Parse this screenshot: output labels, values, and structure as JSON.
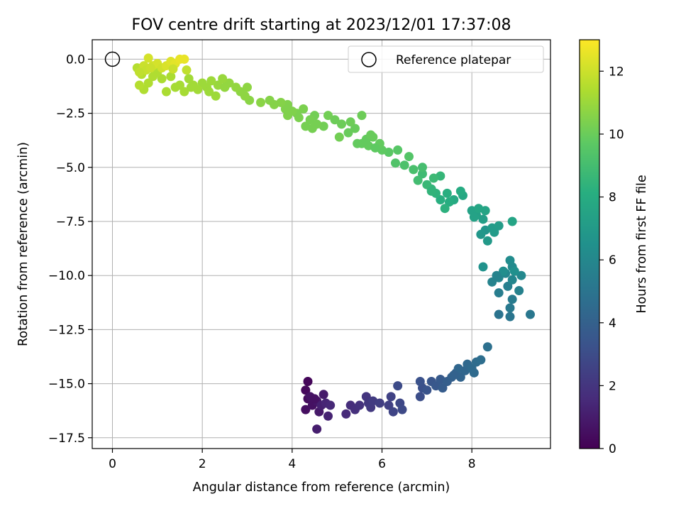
{
  "chart_data": {
    "type": "scatter",
    "title": "FOV centre drift starting at 2023/12/01 17:37:08",
    "xlabel": "Angular distance from reference (arcmin)",
    "ylabel": "Rotation from reference (arcmin)",
    "xlim": [
      -0.45,
      9.75
    ],
    "ylim": [
      -18.0,
      0.9
    ],
    "x_ticks": [
      0,
      2,
      4,
      6,
      8
    ],
    "y_ticks": [
      0.0,
      -2.5,
      -5.0,
      -7.5,
      -10.0,
      -12.5,
      -15.0,
      -17.5
    ],
    "grid": true,
    "legend": {
      "placement": "top-right",
      "entries": [
        "Reference platepar"
      ]
    },
    "reference_point": {
      "label": "Reference platepar",
      "x": 0,
      "y": 0
    },
    "colorbar": {
      "label": "Hours from first FF file",
      "colormap": "viridis",
      "range": [
        0,
        13
      ],
      "ticks": [
        0,
        2,
        4,
        6,
        8,
        10,
        12
      ]
    },
    "series": [
      {
        "points": [
          [
            4.35,
            -14.9,
            0.2
          ],
          [
            4.3,
            -15.3,
            0.3
          ],
          [
            4.35,
            -15.7,
            0.4
          ],
          [
            4.3,
            -16.2,
            0.5
          ],
          [
            4.45,
            -16.0,
            0.6
          ],
          [
            4.4,
            -15.6,
            0.7
          ],
          [
            4.55,
            -15.8,
            0.8
          ],
          [
            4.6,
            -16.3,
            0.9
          ],
          [
            4.7,
            -15.5,
            1.0
          ],
          [
            4.55,
            -17.1,
            1.1
          ],
          [
            4.65,
            -16.0,
            1.2
          ],
          [
            4.8,
            -16.5,
            1.3
          ],
          [
            4.75,
            -15.9,
            1.4
          ],
          [
            4.85,
            -16.0,
            1.5
          ],
          [
            4.5,
            -15.7,
            0.6
          ],
          [
            5.2,
            -16.4,
            1.6
          ],
          [
            5.3,
            -16.0,
            1.7
          ],
          [
            5.4,
            -16.2,
            1.8
          ],
          [
            5.5,
            -16.0,
            1.9
          ],
          [
            5.65,
            -15.6,
            2.0
          ],
          [
            5.7,
            -15.9,
            2.1
          ],
          [
            5.75,
            -16.1,
            2.2
          ],
          [
            5.8,
            -15.8,
            2.3
          ],
          [
            5.95,
            -15.9,
            2.4
          ],
          [
            6.15,
            -16.0,
            2.5
          ],
          [
            6.2,
            -15.6,
            2.6
          ],
          [
            6.25,
            -16.3,
            2.7
          ],
          [
            6.4,
            -15.9,
            2.8
          ],
          [
            6.45,
            -16.2,
            2.9
          ],
          [
            6.35,
            -15.1,
            3.0
          ],
          [
            6.85,
            -15.6,
            3.1
          ],
          [
            6.9,
            -15.2,
            3.2
          ],
          [
            6.85,
            -14.9,
            3.3
          ],
          [
            7.0,
            -15.3,
            3.4
          ],
          [
            7.1,
            -14.9,
            3.5
          ],
          [
            7.2,
            -15.1,
            3.6
          ],
          [
            7.3,
            -14.8,
            3.7
          ],
          [
            7.35,
            -15.2,
            3.8
          ],
          [
            7.45,
            -14.9,
            3.9
          ],
          [
            7.55,
            -14.7,
            4.0
          ],
          [
            7.65,
            -14.5,
            4.1
          ],
          [
            7.75,
            -14.7,
            4.2
          ],
          [
            7.85,
            -14.4,
            4.3
          ],
          [
            7.9,
            -14.1,
            4.4
          ],
          [
            8.0,
            -14.3,
            4.5
          ],
          [
            8.1,
            -14.0,
            4.6
          ],
          [
            8.2,
            -13.9,
            4.7
          ],
          [
            8.35,
            -13.3,
            4.8
          ],
          [
            7.7,
            -14.3,
            4.3
          ],
          [
            7.6,
            -14.6,
            4.1
          ],
          [
            8.05,
            -14.5,
            4.5
          ],
          [
            8.6,
            -11.8,
            5.0
          ],
          [
            8.85,
            -11.9,
            5.1
          ],
          [
            9.3,
            -11.8,
            5.2
          ],
          [
            8.85,
            -11.5,
            5.3
          ],
          [
            8.9,
            -11.1,
            5.4
          ],
          [
            8.6,
            -10.8,
            5.5
          ],
          [
            8.8,
            -10.5,
            5.6
          ],
          [
            9.05,
            -10.7,
            5.7
          ],
          [
            8.45,
            -10.3,
            5.8
          ],
          [
            8.6,
            -10.1,
            5.9
          ],
          [
            8.75,
            -9.9,
            6.0
          ],
          [
            9.1,
            -10.0,
            6.1
          ],
          [
            8.9,
            -9.6,
            6.2
          ],
          [
            8.85,
            -9.3,
            6.3
          ],
          [
            8.7,
            -9.8,
            6.4
          ],
          [
            8.95,
            -9.8,
            6.5
          ],
          [
            8.25,
            -9.6,
            6.6
          ],
          [
            8.55,
            -10.0,
            5.8
          ],
          [
            8.9,
            -10.2,
            6.0
          ],
          [
            8.3,
            -7.9,
            6.8
          ],
          [
            8.2,
            -8.1,
            6.9
          ],
          [
            8.35,
            -8.4,
            7.0
          ],
          [
            8.45,
            -7.8,
            7.1
          ],
          [
            8.6,
            -7.7,
            7.2
          ],
          [
            8.25,
            -7.4,
            7.3
          ],
          [
            8.1,
            -7.2,
            7.4
          ],
          [
            8.0,
            -7.0,
            7.5
          ],
          [
            8.3,
            -7.0,
            7.6
          ],
          [
            8.15,
            -6.9,
            7.7
          ],
          [
            8.9,
            -7.5,
            7.6
          ],
          [
            8.05,
            -7.3,
            7.5
          ],
          [
            8.5,
            -8.0,
            7.1
          ],
          [
            7.8,
            -6.3,
            7.8
          ],
          [
            7.6,
            -6.5,
            7.9
          ],
          [
            7.75,
            -6.1,
            8.0
          ],
          [
            7.5,
            -6.6,
            8.1
          ],
          [
            7.3,
            -6.5,
            8.2
          ],
          [
            7.4,
            -6.9,
            8.3
          ],
          [
            7.2,
            -6.2,
            8.4
          ],
          [
            7.1,
            -6.0,
            8.5
          ],
          [
            7.3,
            -5.4,
            8.6
          ],
          [
            7.0,
            -5.8,
            8.7
          ],
          [
            7.15,
            -5.5,
            8.8
          ],
          [
            6.9,
            -5.3,
            8.9
          ],
          [
            6.8,
            -5.6,
            9.0
          ],
          [
            6.9,
            -5.0,
            9.1
          ],
          [
            6.7,
            -5.1,
            9.2
          ],
          [
            6.5,
            -4.9,
            9.3
          ],
          [
            6.3,
            -4.8,
            9.4
          ],
          [
            6.6,
            -4.5,
            9.5
          ],
          [
            6.35,
            -4.2,
            9.6
          ],
          [
            6.15,
            -4.3,
            9.7
          ],
          [
            6.0,
            -4.2,
            9.8
          ],
          [
            5.95,
            -3.9,
            9.9
          ],
          [
            5.8,
            -3.6,
            10.0
          ],
          [
            5.7,
            -4.0,
            9.9
          ],
          [
            5.65,
            -3.7,
            9.9
          ],
          [
            5.55,
            -3.9,
            9.9
          ],
          [
            5.45,
            -3.9,
            9.9
          ],
          [
            5.75,
            -3.5,
            10.0
          ],
          [
            5.85,
            -4.1,
            9.8
          ],
          [
            7.1,
            -6.1,
            8.5
          ],
          [
            7.45,
            -6.2,
            8.2
          ],
          [
            5.4,
            -3.2,
            10.0
          ],
          [
            5.25,
            -3.4,
            10.0
          ],
          [
            5.3,
            -2.9,
            10.1
          ],
          [
            5.1,
            -3.0,
            10.1
          ],
          [
            5.05,
            -3.6,
            10.2
          ],
          [
            4.95,
            -2.8,
            10.1
          ],
          [
            4.8,
            -2.6,
            10.2
          ],
          [
            4.7,
            -3.1,
            10.2
          ],
          [
            4.55,
            -3.0,
            10.3
          ],
          [
            4.45,
            -3.2,
            10.3
          ],
          [
            4.3,
            -3.1,
            10.3
          ],
          [
            4.15,
            -2.7,
            10.4
          ],
          [
            4.25,
            -2.3,
            10.4
          ],
          [
            4.1,
            -2.5,
            10.4
          ],
          [
            4.0,
            -2.4,
            10.5
          ],
          [
            3.9,
            -2.6,
            10.5
          ],
          [
            3.85,
            -2.3,
            10.5
          ],
          [
            3.9,
            -2.1,
            10.5
          ],
          [
            3.75,
            -2.0,
            10.6
          ],
          [
            3.6,
            -2.1,
            10.6
          ],
          [
            3.5,
            -1.9,
            10.6
          ],
          [
            3.3,
            -2.0,
            10.7
          ],
          [
            3.05,
            -1.9,
            10.7
          ],
          [
            2.95,
            -1.7,
            10.8
          ],
          [
            3.0,
            -1.3,
            10.8
          ],
          [
            2.85,
            -1.5,
            10.8
          ],
          [
            4.5,
            -2.6,
            10.2
          ],
          [
            4.4,
            -2.8,
            10.3
          ],
          [
            5.55,
            -2.6,
            10.1
          ],
          [
            2.75,
            -1.3,
            10.9
          ],
          [
            2.6,
            -1.1,
            10.9
          ],
          [
            2.45,
            -0.9,
            11.0
          ],
          [
            2.35,
            -1.2,
            11.0
          ],
          [
            2.2,
            -1.0,
            11.1
          ],
          [
            2.1,
            -1.3,
            11.1
          ],
          [
            2.0,
            -1.1,
            11.1
          ],
          [
            1.9,
            -1.4,
            11.2
          ],
          [
            1.8,
            -1.2,
            11.2
          ],
          [
            1.7,
            -0.9,
            11.2
          ],
          [
            1.6,
            -1.5,
            11.3
          ],
          [
            1.5,
            -1.2,
            11.3
          ],
          [
            1.4,
            -1.3,
            11.3
          ],
          [
            1.3,
            -0.8,
            11.4
          ],
          [
            1.2,
            -1.5,
            11.4
          ],
          [
            1.1,
            -0.9,
            11.4
          ],
          [
            1.0,
            -0.6,
            11.5
          ],
          [
            0.9,
            -0.8,
            11.5
          ],
          [
            0.8,
            -1.1,
            11.5
          ],
          [
            0.7,
            -1.4,
            11.5
          ],
          [
            0.6,
            -1.2,
            11.6
          ],
          [
            0.55,
            -0.4,
            11.6
          ],
          [
            0.65,
            -0.7,
            11.6
          ],
          [
            2.3,
            -1.7,
            11.1
          ],
          [
            2.15,
            -1.5,
            11.1
          ],
          [
            1.75,
            -1.3,
            11.2
          ],
          [
            2.5,
            -1.3,
            10.9
          ],
          [
            0.8,
            0.05,
            12.2
          ],
          [
            0.9,
            -0.3,
            12.1
          ],
          [
            1.0,
            -0.2,
            12.2
          ],
          [
            1.1,
            -0.4,
            12.1
          ],
          [
            1.2,
            -0.3,
            12.3
          ],
          [
            1.3,
            -0.1,
            12.4
          ],
          [
            1.4,
            -0.2,
            12.5
          ],
          [
            1.5,
            0.0,
            12.6
          ],
          [
            1.6,
            0.0,
            12.6
          ],
          [
            0.7,
            -0.3,
            12.0
          ],
          [
            0.75,
            -0.5,
            11.9
          ],
          [
            0.6,
            -0.6,
            11.8
          ],
          [
            0.85,
            -0.4,
            12.0
          ],
          [
            1.35,
            -0.45,
            12.0
          ],
          [
            1.65,
            -0.5,
            11.8
          ]
        ]
      }
    ]
  }
}
